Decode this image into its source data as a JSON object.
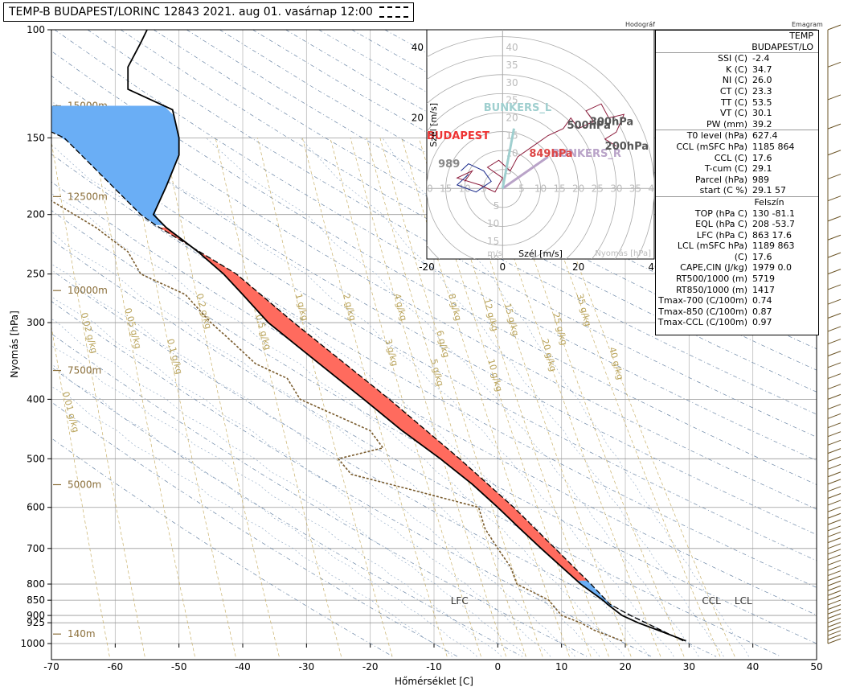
{
  "title": "TEMP-B BUDAPEST/LORINC 12843 2021. aug 01. vasárnap 12:00",
  "hodograph_label": "Hodográf",
  "emagram_label": "Emagram",
  "stats": {
    "header": [
      "TEMP",
      "BUDAPEST/LO"
    ],
    "rows": [
      {
        "label": "SSI (C)",
        "value": "-2.4"
      },
      {
        "label": "K (C)",
        "value": "34.7"
      },
      {
        "label": "NI (C)",
        "value": "26.0"
      },
      {
        "label": "CT (C)",
        "value": "23.3"
      },
      {
        "label": "TT (C)",
        "value": "53.5"
      },
      {
        "label": "VT (C)",
        "value": "30.1"
      },
      {
        "label": "PW (mm)",
        "value": "39.2"
      },
      {
        "label": "T0 level (hPa)",
        "value": "627.4"
      },
      {
        "label": "CCL (mSFC  hPa)",
        "value": "1185  864"
      },
      {
        "label": "CCL (C)",
        "value": "17.6"
      },
      {
        "label": "T-cum (C)",
        "value": "29.1"
      },
      {
        "label": "Parcel  (hPa)",
        "value": "989"
      },
      {
        "label": "start (C  %)",
        "value": "29.1  57"
      },
      {
        "label": "",
        "value": "Felszín",
        "center": true
      },
      {
        "label": "TOP (hPa  C)",
        "value": "130  -81.1"
      },
      {
        "label": "EQL (hPa  C)",
        "value": "208  -53.7"
      },
      {
        "label": "LFC (hPa  C)",
        "value": "863  17.6"
      },
      {
        "label": "LCL (mSFC  hPa)",
        "value": "1189  863"
      },
      {
        "label": "(C)",
        "value": "17.6"
      },
      {
        "label": "CAPE,CIN (J/kg)",
        "value": "1979  0.0"
      },
      {
        "label": "RT500/1000 (m)",
        "value": "5719"
      },
      {
        "label": "RT850/1000 (m)",
        "value": "1417"
      },
      {
        "label": "Tmax-700 (C/100m)",
        "value": "0.74"
      },
      {
        "label": "Tmax-850 (C/100m)",
        "value": "0.87"
      },
      {
        "label": "Tmax-CCL (C/100m)",
        "value": "0.97"
      }
    ]
  },
  "chart_data": [
    {
      "type": "line",
      "subtype": "emagram",
      "xlabel": "Hőmérséklet [C]",
      "ylabel": "Nyomás [hPa]",
      "xlim": [
        -70,
        50
      ],
      "ylim": [
        1000,
        100
      ],
      "y_scale": "log",
      "xticks": [
        "-70",
        "-60",
        "-50",
        "-40",
        "-30",
        "-20",
        "-10",
        "0",
        "10",
        "20",
        "30",
        "40",
        "50"
      ],
      "yticks": [
        "100",
        "150",
        "200",
        "250",
        "300",
        "400",
        "500",
        "600",
        "700",
        "800",
        "850",
        "900",
        "925",
        "1000"
      ],
      "height_labels": [
        {
          "p": 133,
          "label": "15000m"
        },
        {
          "p": 187,
          "label": "12500m"
        },
        {
          "p": 266,
          "label": "10000m"
        },
        {
          "p": 359,
          "label": "7500m"
        },
        {
          "p": 551,
          "label": "5000m"
        },
        {
          "p": 965,
          "label": "140m"
        }
      ],
      "mixing_labels": [
        "0.02 g/kg",
        "0.05 g/kg",
        "0.1 g/kg",
        "0.2 g/kg",
        "0.5 g/kg",
        "1 g/kg",
        "2 g/kg",
        "3 g/kg",
        "4 g/kg",
        "5 g/kg",
        "6 g/kg",
        "8 g/kg",
        "10 g/kg",
        "12 g/kg",
        "15 g/kg",
        "20 g/kg",
        "25 g/kg",
        "35 g/kg",
        "40 g/kg",
        "0.01 g/kg"
      ],
      "level_labels": [
        "LFC",
        "CCL",
        "LCL"
      ],
      "temperature": [
        {
          "p": 990,
          "t": 29.5
        },
        {
          "p": 950,
          "t": 25
        },
        {
          "p": 925,
          "t": 22
        },
        {
          "p": 900,
          "t": 19.5
        },
        {
          "p": 863,
          "t": 17.2
        },
        {
          "p": 850,
          "t": 16.5
        },
        {
          "p": 800,
          "t": 13
        },
        {
          "p": 750,
          "t": 10
        },
        {
          "p": 700,
          "t": 6.8
        },
        {
          "p": 650,
          "t": 3.5
        },
        {
          "p": 600,
          "t": 0
        },
        {
          "p": 550,
          "t": -4
        },
        {
          "p": 500,
          "t": -9
        },
        {
          "p": 450,
          "t": -15
        },
        {
          "p": 400,
          "t": -21
        },
        {
          "p": 350,
          "t": -28
        },
        {
          "p": 300,
          "t": -36
        },
        {
          "p": 270,
          "t": -40
        },
        {
          "p": 250,
          "t": -43
        },
        {
          "p": 230,
          "t": -47
        },
        {
          "p": 210,
          "t": -52
        },
        {
          "p": 200,
          "t": -54
        },
        {
          "p": 180,
          "t": -52
        },
        {
          "p": 160,
          "t": -50
        },
        {
          "p": 150,
          "t": -50
        },
        {
          "p": 135,
          "t": -51
        },
        {
          "p": 125,
          "t": -58
        },
        {
          "p": 115,
          "t": -58
        },
        {
          "p": 105,
          "t": -56
        },
        {
          "p": 100,
          "t": -55
        }
      ],
      "dewpoint": [
        {
          "p": 990,
          "t": 19.5
        },
        {
          "p": 950,
          "t": 15
        },
        {
          "p": 925,
          "t": 13
        },
        {
          "p": 900,
          "t": 10
        },
        {
          "p": 850,
          "t": 8
        },
        {
          "p": 800,
          "t": 3
        },
        {
          "p": 750,
          "t": 2
        },
        {
          "p": 700,
          "t": 0
        },
        {
          "p": 650,
          "t": -2
        },
        {
          "p": 600,
          "t": -3
        },
        {
          "p": 560,
          "t": -14
        },
        {
          "p": 530,
          "t": -23
        },
        {
          "p": 500,
          "t": -25
        },
        {
          "p": 480,
          "t": -18
        },
        {
          "p": 450,
          "t": -20
        },
        {
          "p": 400,
          "t": -31
        },
        {
          "p": 370,
          "t": -33
        },
        {
          "p": 350,
          "t": -38
        },
        {
          "p": 320,
          "t": -42
        },
        {
          "p": 300,
          "t": -45
        },
        {
          "p": 270,
          "t": -49
        },
        {
          "p": 250,
          "t": -56
        },
        {
          "p": 230,
          "t": -58
        },
        {
          "p": 210,
          "t": -63
        },
        {
          "p": 190,
          "t": -70
        }
      ],
      "parcel": [
        {
          "p": 990,
          "t": 29.1
        },
        {
          "p": 950,
          "t": 25.5
        },
        {
          "p": 925,
          "t": 23.2
        },
        {
          "p": 900,
          "t": 20.8
        },
        {
          "p": 863,
          "t": 17.6
        },
        {
          "p": 850,
          "t": 17
        },
        {
          "p": 800,
          "t": 14.6
        },
        {
          "p": 700,
          "t": 9
        },
        {
          "p": 600,
          "t": 2.5
        },
        {
          "p": 500,
          "t": -6
        },
        {
          "p": 400,
          "t": -17
        },
        {
          "p": 300,
          "t": -32
        },
        {
          "p": 250,
          "t": -41
        },
        {
          "p": 208,
          "t": -53.7
        },
        {
          "p": 200,
          "t": -56
        },
        {
          "p": 150,
          "t": -68
        },
        {
          "p": 130,
          "t": -81
        }
      ],
      "cape_color": "#ff6b5e",
      "cin_color": "#6aaef5"
    },
    {
      "type": "scatter",
      "subtype": "hodograph",
      "xlabel": "Szél [m/s]",
      "ylabel": "Szél [m/s]",
      "xlim": [
        -20,
        40
      ],
      "ylim": [
        -20,
        45
      ],
      "x_ticks": [
        "-20",
        "0",
        "20",
        "40"
      ],
      "y_ticks": [
        "20",
        "40"
      ],
      "ring_labels": [
        "5",
        "10",
        "15",
        "20",
        "25",
        "30",
        "35",
        "40"
      ],
      "corner_labels": [
        "m/s",
        "Nyomás [hPa]"
      ],
      "labels": [
        {
          "text": "BUNKERS_L",
          "u": -5,
          "v": 22,
          "color": "#9fcfcf"
        },
        {
          "text": "BUNKERS_R",
          "u": 13,
          "v": 9,
          "color": "#b9a3c8"
        },
        {
          "text": "BUDAPEST",
          "u": -20,
          "v": 14,
          "color": "#e33"
        },
        {
          "text": "300hPa",
          "u": 23,
          "v": 18,
          "color": "#555"
        },
        {
          "text": "500hPa",
          "u": 17,
          "v": 17,
          "color": "#555"
        },
        {
          "text": "200hPa",
          "u": 27,
          "v": 11,
          "color": "#555"
        },
        {
          "text": "849hPa",
          "u": 7,
          "v": 9,
          "color": "#d44"
        },
        {
          "text": "989",
          "u": -17,
          "v": 6,
          "color": "#888"
        }
      ]
    }
  ]
}
